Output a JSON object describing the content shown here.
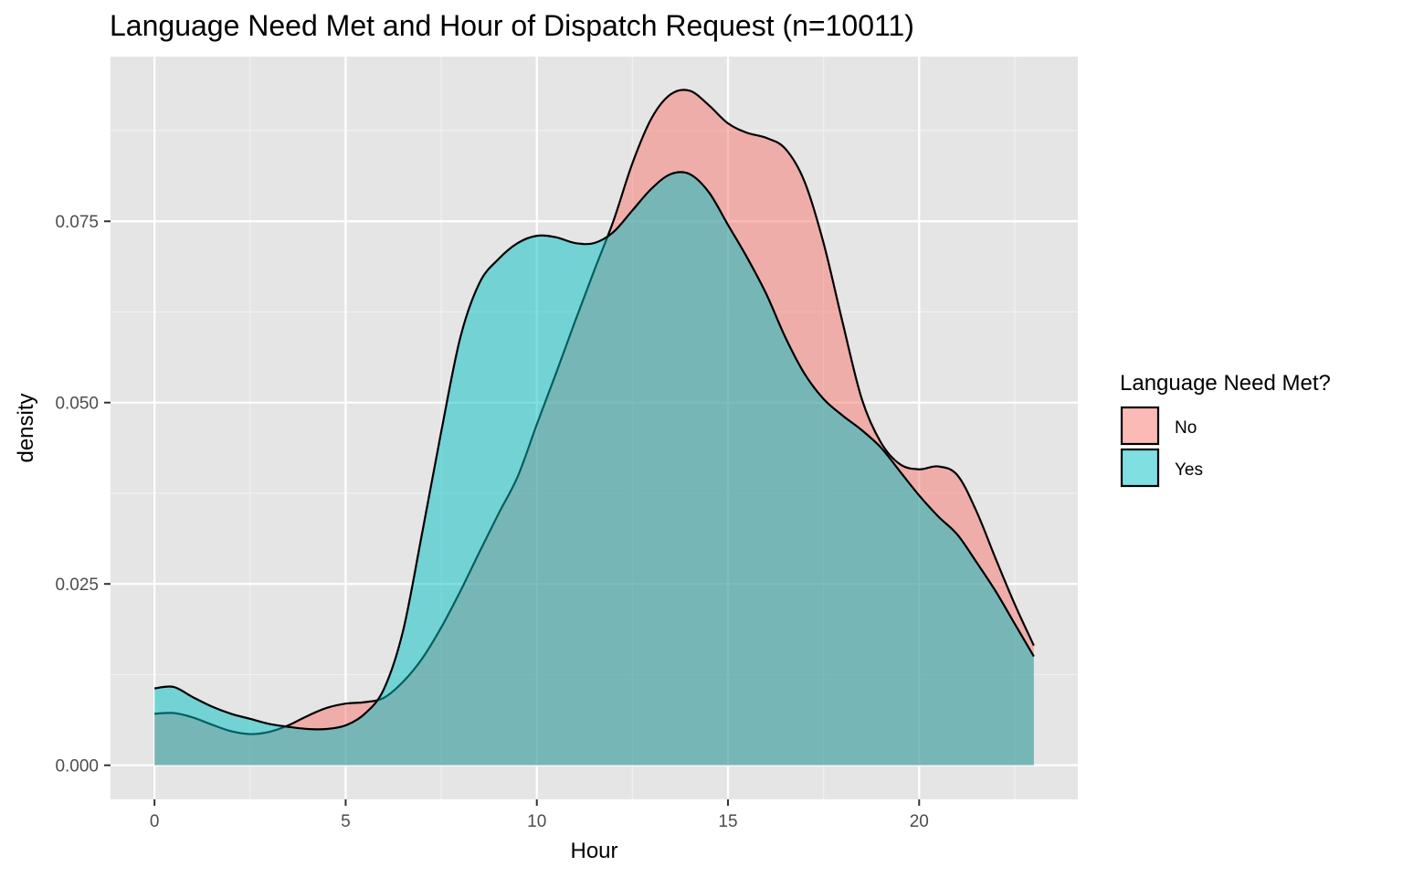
{
  "chart_data": {
    "type": "area",
    "title": "Language Need Met and Hour of Dispatch Request (n=10011)",
    "xlabel": "Hour",
    "ylabel": "density",
    "xlim": [
      -1.15,
      24.15
    ],
    "ylim": [
      -0.0047,
      0.0977
    ],
    "x_ticks": [
      0,
      5,
      10,
      15,
      20
    ],
    "x_tick_labels": [
      "0",
      "5",
      "10",
      "15",
      "20"
    ],
    "y_ticks": [
      0,
      0.025,
      0.05,
      0.075
    ],
    "y_tick_labels": [
      "0.000",
      "0.025",
      "0.050",
      "0.075"
    ],
    "grid": true,
    "legend": {
      "title": "Language Need Met?",
      "position": "right"
    },
    "series": [
      {
        "name": "No",
        "color": "#F8766D",
        "points": [
          [
            0,
            0.0071
          ],
          [
            0.5,
            0.0072
          ],
          [
            1,
            0.0066
          ],
          [
            1.5,
            0.0056
          ],
          [
            2,
            0.0047
          ],
          [
            2.5,
            0.0043
          ],
          [
            3,
            0.0046
          ],
          [
            3.5,
            0.0055
          ],
          [
            4,
            0.0068
          ],
          [
            4.5,
            0.0079
          ],
          [
            5,
            0.0085
          ],
          [
            5.5,
            0.0087
          ],
          [
            6,
            0.0093
          ],
          [
            6.5,
            0.0115
          ],
          [
            7,
            0.0147
          ],
          [
            7.5,
            0.019
          ],
          [
            8,
            0.024
          ],
          [
            8.5,
            0.0294
          ],
          [
            9,
            0.0347
          ],
          [
            9.5,
            0.0398
          ],
          [
            10,
            0.047
          ],
          [
            10.5,
            0.054
          ],
          [
            11,
            0.0612
          ],
          [
            11.5,
            0.0682
          ],
          [
            12,
            0.075
          ],
          [
            12.5,
            0.083
          ],
          [
            13,
            0.0892
          ],
          [
            13.5,
            0.0925
          ],
          [
            14,
            0.093
          ],
          [
            14.5,
            0.091
          ],
          [
            15,
            0.0885
          ],
          [
            15.5,
            0.0872
          ],
          [
            16,
            0.0865
          ],
          [
            16.5,
            0.085
          ],
          [
            17,
            0.0805
          ],
          [
            17.5,
            0.072
          ],
          [
            18,
            0.061
          ],
          [
            18.5,
            0.0505
          ],
          [
            19,
            0.0445
          ],
          [
            19.5,
            0.0415
          ],
          [
            20,
            0.0408
          ],
          [
            20.5,
            0.0412
          ],
          [
            21,
            0.04
          ],
          [
            21.5,
            0.035
          ],
          [
            22,
            0.0285
          ],
          [
            22.5,
            0.0222
          ],
          [
            23,
            0.0165
          ]
        ]
      },
      {
        "name": "Yes",
        "color": "#00BFC4",
        "points": [
          [
            0,
            0.0106
          ],
          [
            0.5,
            0.0108
          ],
          [
            1,
            0.0094
          ],
          [
            1.5,
            0.0081
          ],
          [
            2,
            0.0071
          ],
          [
            2.5,
            0.0064
          ],
          [
            3,
            0.0057
          ],
          [
            3.5,
            0.0053
          ],
          [
            4,
            0.005
          ],
          [
            4.5,
            0.005
          ],
          [
            5,
            0.0055
          ],
          [
            5.5,
            0.0071
          ],
          [
            6,
            0.0105
          ],
          [
            6.5,
            0.0185
          ],
          [
            7,
            0.032
          ],
          [
            7.5,
            0.046
          ],
          [
            8,
            0.059
          ],
          [
            8.5,
            0.0665
          ],
          [
            9,
            0.0698
          ],
          [
            9.5,
            0.072
          ],
          [
            10,
            0.073
          ],
          [
            10.5,
            0.0728
          ],
          [
            11,
            0.072
          ],
          [
            11.5,
            0.072
          ],
          [
            12,
            0.0735
          ],
          [
            12.5,
            0.0765
          ],
          [
            13,
            0.0795
          ],
          [
            13.5,
            0.0815
          ],
          [
            14,
            0.0815
          ],
          [
            14.5,
            0.079
          ],
          [
            15,
            0.0745
          ],
          [
            15.5,
            0.07
          ],
          [
            16,
            0.065
          ],
          [
            16.5,
            0.059
          ],
          [
            17,
            0.054
          ],
          [
            17.5,
            0.0505
          ],
          [
            18,
            0.0482
          ],
          [
            18.5,
            0.0462
          ],
          [
            19,
            0.0438
          ],
          [
            19.5,
            0.0405
          ],
          [
            20,
            0.0372
          ],
          [
            20.5,
            0.0343
          ],
          [
            21,
            0.0318
          ],
          [
            21.5,
            0.028
          ],
          [
            22,
            0.024
          ],
          [
            22.5,
            0.0195
          ],
          [
            23,
            0.015
          ]
        ]
      }
    ]
  }
}
